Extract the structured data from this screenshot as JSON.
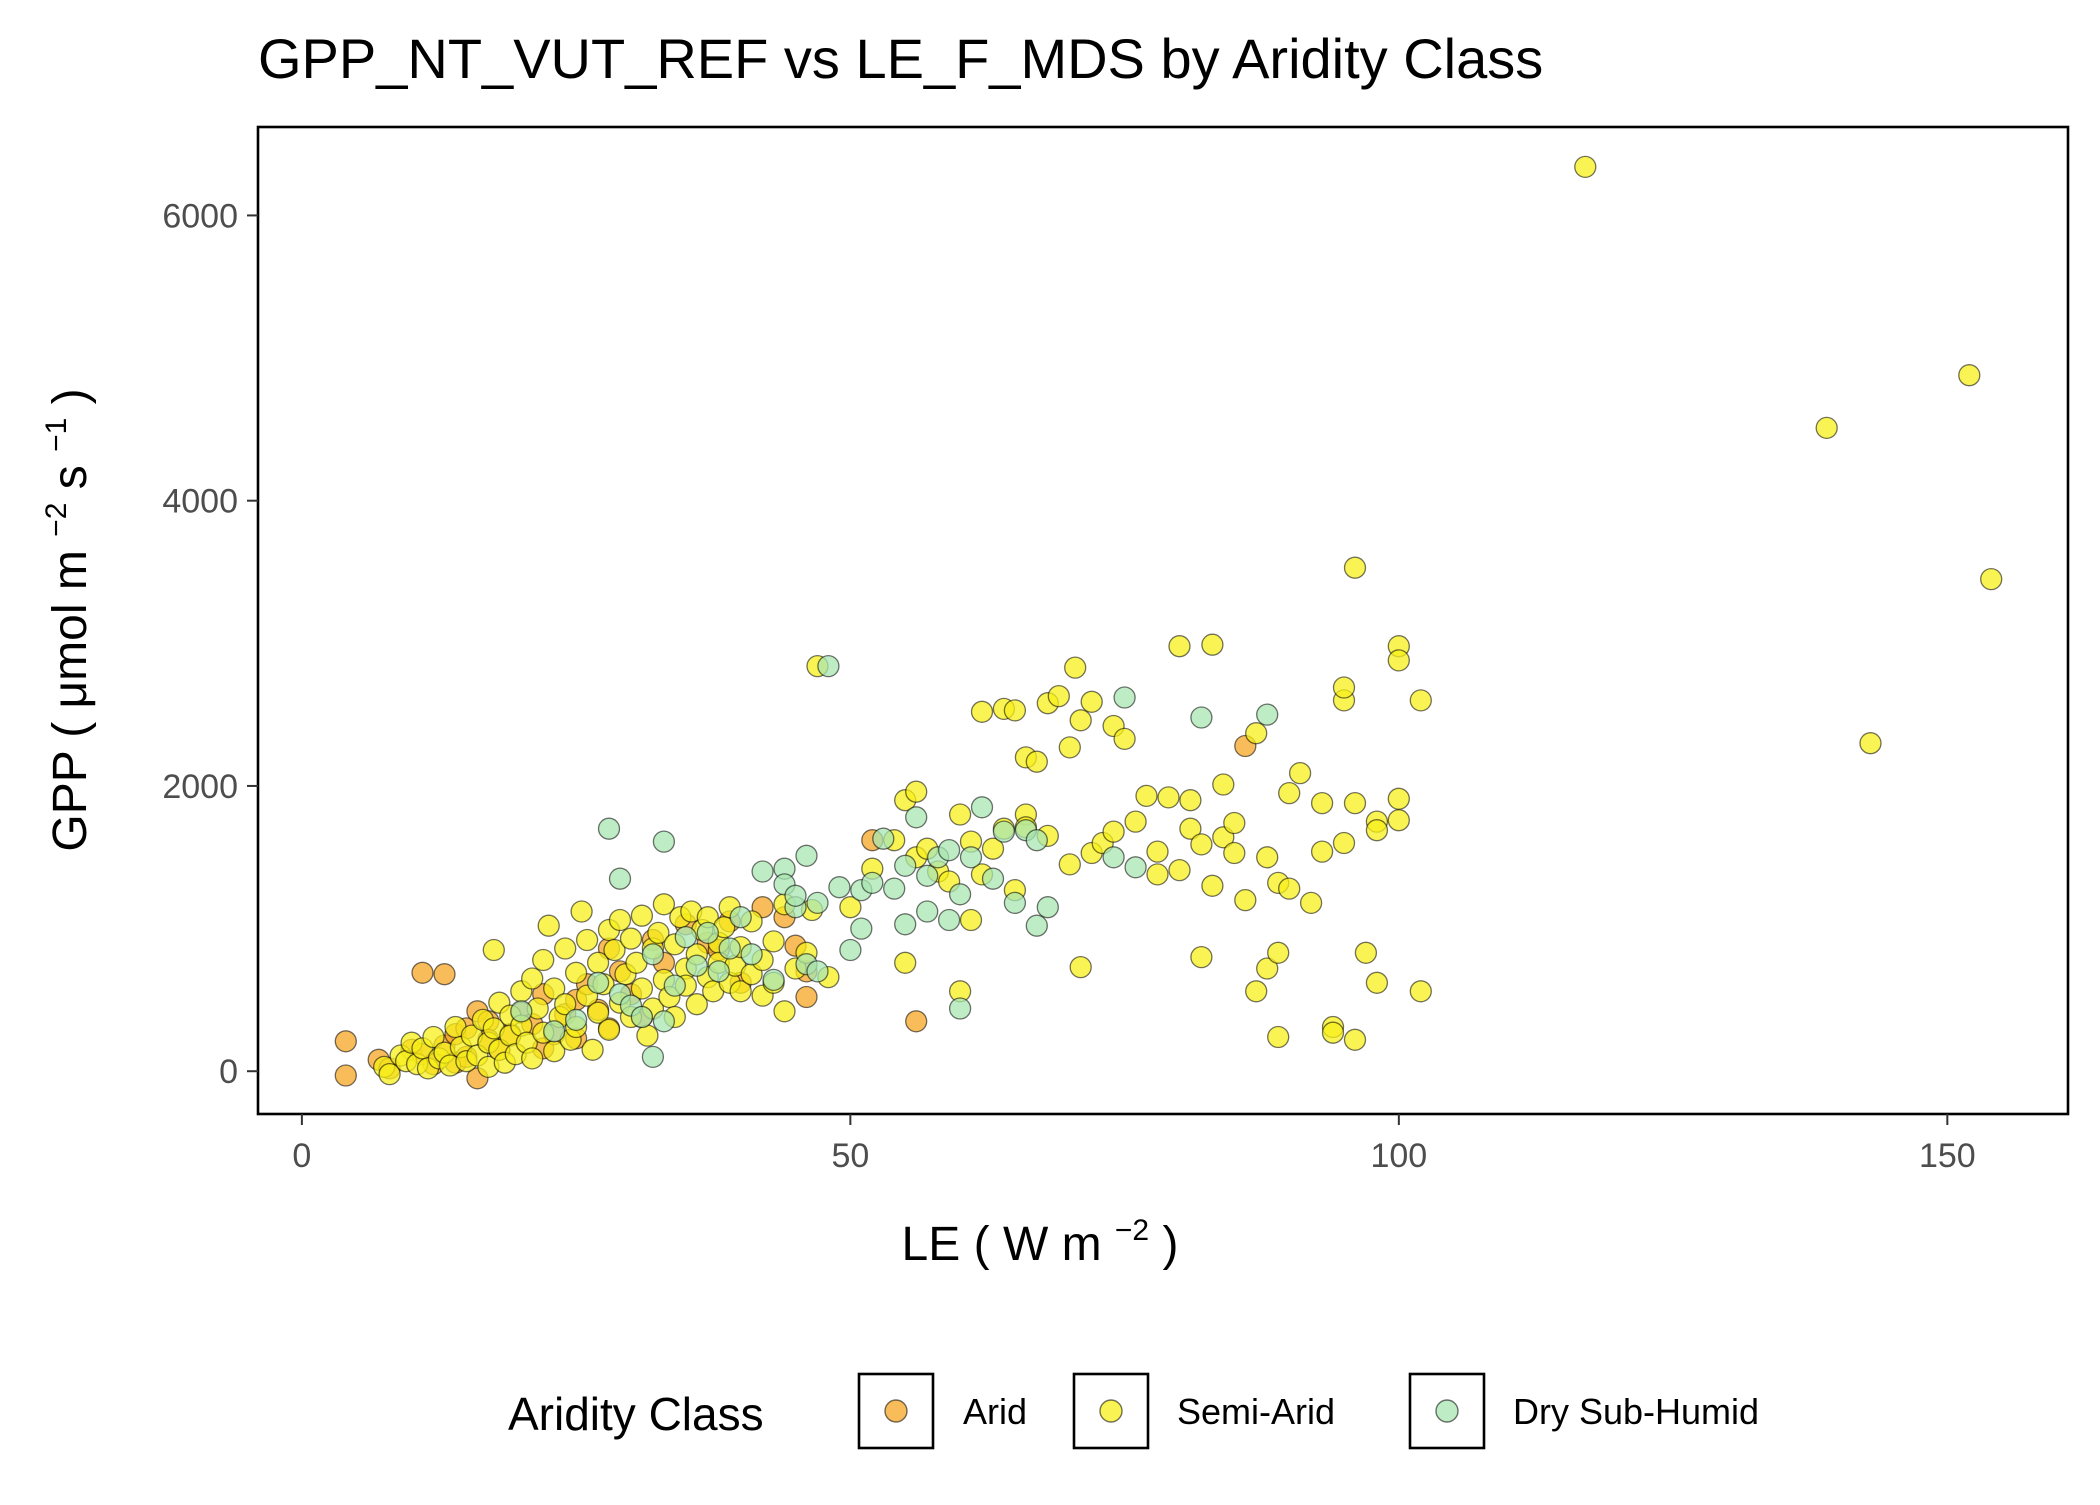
{
  "chart_data": {
    "type": "scatter",
    "title": "GPP_NT_VUT_REF vs LE_F_MDS by Aridity Class",
    "xlabel": "LE (W m⁻²)",
    "ylabel": "GPP (μmol m⁻² s⁻¹)",
    "xlabel_parts": {
      "main": "LE",
      "unit": "W m",
      "exp": "−2"
    },
    "ylabel_parts": {
      "main": "GPP",
      "unit1": "μmol m",
      "exp1": "−2",
      "unit2": " s",
      "exp2": "−1"
    },
    "xlim": [
      -4,
      161
    ],
    "ylim": [
      -300,
      6620
    ],
    "x_ticks": [
      0,
      50,
      100,
      150
    ],
    "y_ticks": [
      0,
      2000,
      4000,
      6000
    ],
    "grid": false,
    "legend": {
      "title": "Aridity Class",
      "position": "bottom"
    },
    "series": [
      {
        "name": "Arid",
        "color": "#F5A623",
        "points": [
          [
            4,
            210
          ],
          [
            4,
            -30
          ],
          [
            7,
            80
          ],
          [
            8,
            20
          ],
          [
            10,
            150
          ],
          [
            11,
            690
          ],
          [
            11,
            120
          ],
          [
            12,
            50
          ],
          [
            13,
            680
          ],
          [
            13,
            180
          ],
          [
            14,
            260
          ],
          [
            14,
            60
          ],
          [
            15,
            300
          ],
          [
            15,
            100
          ],
          [
            16,
            420
          ],
          [
            16,
            -50
          ],
          [
            17,
            350
          ],
          [
            17,
            220
          ],
          [
            18,
            150
          ],
          [
            19,
            260
          ],
          [
            20,
            410
          ],
          [
            21,
            330
          ],
          [
            22,
            540
          ],
          [
            22,
            160
          ],
          [
            23,
            260
          ],
          [
            24,
            400
          ],
          [
            25,
            500
          ],
          [
            25,
            230
          ],
          [
            26,
            610
          ],
          [
            27,
            430
          ],
          [
            28,
            300
          ],
          [
            28,
            860
          ],
          [
            29,
            700
          ],
          [
            30,
            540
          ],
          [
            31,
            380
          ],
          [
            32,
            920
          ],
          [
            33,
            760
          ],
          [
            35,
            1030
          ],
          [
            37,
            900
          ],
          [
            38,
            850
          ],
          [
            39,
            1050
          ],
          [
            40,
            620
          ],
          [
            42,
            1150
          ],
          [
            44,
            1080
          ],
          [
            45,
            880
          ],
          [
            46,
            520
          ],
          [
            46,
            700
          ],
          [
            52,
            1620
          ],
          [
            56,
            350
          ],
          [
            86,
            2280
          ]
        ]
      },
      {
        "name": "Semi-Arid",
        "color": "#F7EF1A",
        "points": [
          [
            7.5,
            30
          ],
          [
            8,
            -20
          ],
          [
            9,
            110
          ],
          [
            9.5,
            70
          ],
          [
            10,
            200
          ],
          [
            10.5,
            50
          ],
          [
            11,
            160
          ],
          [
            11.5,
            20
          ],
          [
            12,
            240
          ],
          [
            12.5,
            90
          ],
          [
            13,
            130
          ],
          [
            13.5,
            40
          ],
          [
            14,
            310
          ],
          [
            14.5,
            170
          ],
          [
            15,
            70
          ],
          [
            15.5,
            250
          ],
          [
            16,
            110
          ],
          [
            16.5,
            360
          ],
          [
            17,
            30
          ],
          [
            17,
            200
          ],
          [
            17.5,
            300
          ],
          [
            17.5,
            850
          ],
          [
            18,
            480
          ],
          [
            18,
            150
          ],
          [
            18.5,
            60
          ],
          [
            19,
            390
          ],
          [
            19,
            250
          ],
          [
            19.5,
            120
          ],
          [
            20,
            560
          ],
          [
            20,
            320
          ],
          [
            20.5,
            200
          ],
          [
            21,
            650
          ],
          [
            21,
            90
          ],
          [
            21.5,
            440
          ],
          [
            22,
            780
          ],
          [
            22,
            270
          ],
          [
            22.5,
            1020
          ],
          [
            23,
            580
          ],
          [
            23,
            140
          ],
          [
            23.5,
            380
          ],
          [
            24,
            860
          ],
          [
            24,
            470
          ],
          [
            24.5,
            220
          ],
          [
            25,
            690
          ],
          [
            25,
            310
          ],
          [
            25.5,
            1120
          ],
          [
            26,
            920
          ],
          [
            26,
            530
          ],
          [
            26.5,
            150
          ],
          [
            27,
            760
          ],
          [
            27,
            410
          ],
          [
            27.5,
            610
          ],
          [
            28,
            990
          ],
          [
            28,
            290
          ],
          [
            28.5,
            850
          ],
          [
            29,
            1060
          ],
          [
            29,
            480
          ],
          [
            29.5,
            680
          ],
          [
            30,
            380
          ],
          [
            30,
            930
          ],
          [
            30.5,
            760
          ],
          [
            31,
            580
          ],
          [
            31,
            1090
          ],
          [
            31.5,
            250
          ],
          [
            32,
            860
          ],
          [
            32,
            440
          ],
          [
            32.5,
            970
          ],
          [
            33,
            640
          ],
          [
            33,
            1170
          ],
          [
            33.5,
            520
          ],
          [
            34,
            890
          ],
          [
            34,
            380
          ],
          [
            34.5,
            1080
          ],
          [
            35,
            720
          ],
          [
            35,
            600
          ],
          [
            35.5,
            1120
          ],
          [
            36,
            820
          ],
          [
            36,
            470
          ],
          [
            36.5,
            990
          ],
          [
            37,
            660
          ],
          [
            37,
            1080
          ],
          [
            37.5,
            560
          ],
          [
            38,
            900
          ],
          [
            38,
            760
          ],
          [
            38.5,
            1010
          ],
          [
            39,
            620
          ],
          [
            39,
            1150
          ],
          [
            39.5,
            740
          ],
          [
            40,
            870
          ],
          [
            40,
            560
          ],
          [
            41,
            680
          ],
          [
            41,
            1050
          ],
          [
            42,
            780
          ],
          [
            42,
            530
          ],
          [
            43,
            910
          ],
          [
            43,
            620
          ],
          [
            44,
            420
          ],
          [
            44,
            1170
          ],
          [
            45,
            720
          ],
          [
            46,
            830
          ],
          [
            46.5,
            1130
          ],
          [
            47,
            2840
          ],
          [
            48,
            660
          ],
          [
            50,
            1150
          ],
          [
            52,
            1420
          ],
          [
            54,
            1620
          ],
          [
            55,
            1900
          ],
          [
            55,
            760
          ],
          [
            56,
            1500
          ],
          [
            56,
            1960
          ],
          [
            57,
            1560
          ],
          [
            58,
            1400
          ],
          [
            59,
            1330
          ],
          [
            60,
            1800
          ],
          [
            60,
            560
          ],
          [
            61,
            1060
          ],
          [
            61,
            1610
          ],
          [
            62,
            2520
          ],
          [
            62,
            1380
          ],
          [
            63,
            1560
          ],
          [
            64,
            2540
          ],
          [
            64,
            1700
          ],
          [
            65,
            2530
          ],
          [
            65,
            1270
          ],
          [
            66,
            1800
          ],
          [
            66,
            2200
          ],
          [
            66,
            1710
          ],
          [
            67,
            2170
          ],
          [
            68,
            2580
          ],
          [
            68,
            1650
          ],
          [
            69,
            2630
          ],
          [
            70,
            2270
          ],
          [
            70,
            1450
          ],
          [
            70.5,
            2830
          ],
          [
            71,
            2460
          ],
          [
            71,
            730
          ],
          [
            72,
            2590
          ],
          [
            72,
            1530
          ],
          [
            73,
            1600
          ],
          [
            74,
            2420
          ],
          [
            74,
            1680
          ],
          [
            75,
            2330
          ],
          [
            76,
            1750
          ],
          [
            77,
            1930
          ],
          [
            78,
            1540
          ],
          [
            78,
            1380
          ],
          [
            79,
            1920
          ],
          [
            80,
            2980
          ],
          [
            80,
            1410
          ],
          [
            81,
            1900
          ],
          [
            81,
            1700
          ],
          [
            82,
            1590
          ],
          [
            82,
            800
          ],
          [
            83,
            2990
          ],
          [
            83,
            1300
          ],
          [
            84,
            1640
          ],
          [
            84,
            2010
          ],
          [
            85,
            1530
          ],
          [
            85,
            1740
          ],
          [
            86,
            1200
          ],
          [
            87,
            560
          ],
          [
            87,
            2370
          ],
          [
            88,
            720
          ],
          [
            88,
            1500
          ],
          [
            89,
            830
          ],
          [
            89,
            240
          ],
          [
            89,
            1320
          ],
          [
            90,
            1950
          ],
          [
            90,
            1280
          ],
          [
            91,
            2090
          ],
          [
            92,
            1180
          ],
          [
            93,
            1880
          ],
          [
            93,
            1540
          ],
          [
            94,
            310
          ],
          [
            94,
            270
          ],
          [
            95,
            1600
          ],
          [
            95,
            2600
          ],
          [
            95,
            2690
          ],
          [
            96,
            3530
          ],
          [
            96,
            1880
          ],
          [
            96,
            220
          ],
          [
            97,
            830
          ],
          [
            98,
            1750
          ],
          [
            98,
            1690
          ],
          [
            98,
            620
          ],
          [
            100,
            2980
          ],
          [
            100,
            2880
          ],
          [
            100,
            1910
          ],
          [
            100,
            1760
          ],
          [
            102,
            2600
          ],
          [
            102,
            560
          ],
          [
            117,
            6340
          ],
          [
            139,
            4510
          ],
          [
            143,
            2300
          ],
          [
            152,
            4880
          ],
          [
            154,
            3450
          ]
        ]
      },
      {
        "name": "Dry Sub-Humid",
        "color": "#A8E6B0",
        "points": [
          [
            20,
            420
          ],
          [
            23,
            280
          ],
          [
            25,
            360
          ],
          [
            27,
            620
          ],
          [
            28,
            1700
          ],
          [
            29,
            540
          ],
          [
            29,
            1350
          ],
          [
            30,
            460
          ],
          [
            31,
            380
          ],
          [
            32,
            100
          ],
          [
            32,
            820
          ],
          [
            33,
            1610
          ],
          [
            33,
            350
          ],
          [
            34,
            600
          ],
          [
            35,
            940
          ],
          [
            36,
            740
          ],
          [
            37,
            970
          ],
          [
            38,
            700
          ],
          [
            39,
            860
          ],
          [
            40,
            1080
          ],
          [
            41,
            820
          ],
          [
            42,
            1400
          ],
          [
            43,
            640
          ],
          [
            44,
            1420
          ],
          [
            44,
            1310
          ],
          [
            45,
            1150
          ],
          [
            45,
            1230
          ],
          [
            46,
            750
          ],
          [
            46,
            1510
          ],
          [
            47,
            1180
          ],
          [
            47,
            700
          ],
          [
            48,
            2840
          ],
          [
            49,
            1290
          ],
          [
            50,
            850
          ],
          [
            51,
            1000
          ],
          [
            51,
            1270
          ],
          [
            52,
            1320
          ],
          [
            53,
            1630
          ],
          [
            54,
            1280
          ],
          [
            55,
            1440
          ],
          [
            55,
            1030
          ],
          [
            56,
            1780
          ],
          [
            57,
            1370
          ],
          [
            57,
            1120
          ],
          [
            58,
            1500
          ],
          [
            59,
            1060
          ],
          [
            59,
            1550
          ],
          [
            60,
            440
          ],
          [
            60,
            1240
          ],
          [
            61,
            1500
          ],
          [
            62,
            1850
          ],
          [
            63,
            1350
          ],
          [
            64,
            1680
          ],
          [
            65,
            1180
          ],
          [
            66,
            1690
          ],
          [
            67,
            1020
          ],
          [
            67,
            1620
          ],
          [
            68,
            1150
          ],
          [
            74,
            1500
          ],
          [
            75,
            2620
          ],
          [
            76,
            1430
          ],
          [
            82,
            2480
          ],
          [
            88,
            2500
          ]
        ]
      }
    ]
  }
}
